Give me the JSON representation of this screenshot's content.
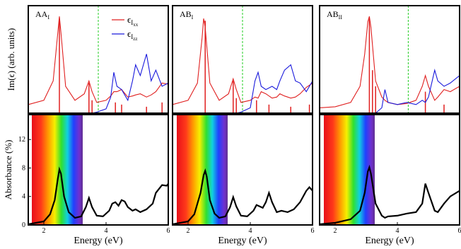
{
  "chart_data": [
    {
      "type": "line",
      "label": "AA",
      "label_sub": "I",
      "ylabel": "Im(ϵ) (arb. units)",
      "xlim": [
        1.5,
        6
      ],
      "ylim": [
        0,
        100
      ],
      "vline": 3.75,
      "x": [
        1.5,
        2.0,
        2.3,
        2.45,
        2.5,
        2.55,
        2.7,
        3.0,
        3.3,
        3.45,
        3.55,
        3.7,
        4.0,
        4.15,
        4.25,
        4.35,
        4.5,
        4.7,
        4.85,
        4.95,
        5.1,
        5.3,
        5.45,
        5.6,
        5.8,
        6.0
      ],
      "series": [
        {
          "name": "ϵ",
          "sub": "I",
          "subsub": "xx",
          "color": "#e02020",
          "values": [
            8,
            12,
            30,
            75,
            90,
            75,
            25,
            12,
            18,
            30,
            20,
            10,
            12,
            16,
            20,
            20,
            22,
            15,
            16,
            17,
            18,
            15,
            17,
            20,
            28,
            27
          ]
        },
        {
          "name": "ϵ",
          "sub": "I",
          "subsub": "zz",
          "color": "#1a1adc",
          "values": [
            0,
            0,
            0,
            0,
            0,
            0,
            0,
            0,
            0,
            0,
            0,
            1,
            4,
            15,
            38,
            25,
            22,
            12,
            30,
            45,
            35,
            55,
            30,
            40,
            25,
            28
          ]
        }
      ],
      "sticks": {
        "color": "#e02020",
        "x": [
          2.5,
          3.45,
          3.55,
          4.3,
          4.5,
          5.3,
          5.8
        ],
        "values": [
          88,
          28,
          12,
          10,
          8,
          6,
          10
        ]
      }
    },
    {
      "type": "line",
      "ylabel": "Absorbance (%)",
      "xlabel": "Energy (eV)",
      "xlim": [
        1.5,
        6
      ],
      "ylim": [
        0,
        15.5
      ],
      "xticks": [
        2,
        4,
        6
      ],
      "yticks": [
        0,
        4,
        8,
        12
      ],
      "x": [
        1.5,
        2.0,
        2.2,
        2.35,
        2.45,
        2.5,
        2.55,
        2.65,
        2.8,
        3.0,
        3.2,
        3.35,
        3.45,
        3.55,
        3.7,
        3.9,
        4.1,
        4.2,
        4.3,
        4.4,
        4.5,
        4.6,
        4.7,
        4.85,
        4.95,
        5.1,
        5.3,
        5.5,
        5.6,
        5.8,
        5.95,
        6.0
      ],
      "series": [
        {
          "color": "#000000",
          "values": [
            0.1,
            0.5,
            1.5,
            3.5,
            6.5,
            7.8,
            7.2,
            4,
            1.8,
            1.0,
            1.2,
            2.5,
            3.8,
            2.5,
            1.3,
            1.2,
            2.0,
            3.0,
            3.2,
            2.7,
            3.5,
            3.3,
            2.5,
            2.0,
            2.2,
            1.8,
            2.2,
            3.0,
            4.5,
            5.6,
            5.5,
            5.8
          ]
        }
      ]
    },
    {
      "type": "line",
      "label": "AB",
      "label_sub": "I",
      "xlim": [
        1.5,
        6
      ],
      "ylim": [
        0,
        100
      ],
      "vline": 3.75,
      "x": [
        1.5,
        2.0,
        2.3,
        2.45,
        2.5,
        2.55,
        2.7,
        3.0,
        3.3,
        3.45,
        3.55,
        3.7,
        4.0,
        4.15,
        4.25,
        4.35,
        4.5,
        4.7,
        4.85,
        4.95,
        5.1,
        5.3,
        5.45,
        5.6,
        5.8,
        6.0
      ],
      "series": [
        {
          "color": "#e02020",
          "values": [
            8,
            12,
            28,
            70,
            88,
            80,
            28,
            12,
            18,
            32,
            22,
            10,
            12,
            15,
            14,
            20,
            18,
            14,
            15,
            18,
            16,
            14,
            15,
            18,
            24,
            28
          ]
        },
        {
          "color": "#1a1adc",
          "values": [
            0,
            0,
            0,
            0,
            0,
            0,
            0,
            0,
            0,
            0,
            0,
            1,
            5,
            30,
            38,
            25,
            22,
            25,
            22,
            30,
            40,
            45,
            30,
            28,
            20,
            30
          ]
        }
      ],
      "sticks": {
        "color": "#e02020",
        "x": [
          2.55,
          3.45,
          3.55,
          4.2,
          4.6,
          5.3,
          5.9
        ],
        "values": [
          86,
          30,
          14,
          12,
          8,
          6,
          8
        ]
      }
    },
    {
      "type": "line",
      "xlabel": "Energy (eV)",
      "xlim": [
        1.5,
        6
      ],
      "ylim": [
        0,
        15.5
      ],
      "xticks": [
        2,
        4,
        6
      ],
      "x": [
        1.5,
        2.0,
        2.2,
        2.4,
        2.5,
        2.55,
        2.6,
        2.7,
        2.85,
        3.0,
        3.2,
        3.35,
        3.45,
        3.55,
        3.7,
        3.9,
        4.1,
        4.2,
        4.3,
        4.4,
        4.5,
        4.6,
        4.7,
        4.85,
        5.0,
        5.2,
        5.4,
        5.6,
        5.8,
        5.9,
        6.0
      ],
      "series": [
        {
          "color": "#000000",
          "values": [
            0.1,
            0.5,
            1.5,
            4.5,
            7.0,
            7.6,
            6.8,
            3.5,
            1.6,
            1.0,
            1.2,
            2.5,
            3.9,
            2.6,
            1.3,
            1.2,
            2.0,
            2.8,
            2.6,
            2.4,
            3.2,
            4.5,
            3.2,
            1.8,
            2.0,
            1.8,
            2.2,
            3.2,
            4.8,
            5.3,
            4.8
          ]
        }
      ]
    },
    {
      "type": "line",
      "label": "AB",
      "label_sub": "II",
      "xlim": [
        1.5,
        6
      ],
      "ylim": [
        0,
        100
      ],
      "vline": 4.35,
      "x": [
        1.5,
        2.0,
        2.5,
        2.8,
        2.95,
        3.05,
        3.1,
        3.15,
        3.3,
        3.5,
        3.6,
        3.7,
        4.0,
        4.3,
        4.6,
        4.8,
        4.9,
        5.0,
        5.2,
        5.3,
        5.5,
        5.7,
        6.0
      ],
      "series": [
        {
          "color": "#e02020",
          "values": [
            5,
            6,
            10,
            25,
            55,
            85,
            90,
            80,
            30,
            15,
            12,
            10,
            8,
            9,
            12,
            25,
            35,
            25,
            12,
            15,
            22,
            20,
            25
          ]
        },
        {
          "color": "#1a1adc",
          "values": [
            0,
            0,
            0,
            0,
            0,
            0,
            0,
            0,
            0,
            5,
            22,
            10,
            8,
            10,
            8,
            12,
            10,
            15,
            40,
            30,
            25,
            28,
            35
          ]
        }
      ],
      "sticks": {
        "color": "#e02020",
        "x": [
          3.1,
          3.2,
          3.3,
          4.9,
          5.5
        ],
        "values": [
          88,
          40,
          25,
          20,
          8
        ]
      }
    },
    {
      "type": "line",
      "xlabel": "Energy (eV)",
      "xlim": [
        1.5,
        6
      ],
      "ylim": [
        0,
        15.5
      ],
      "xticks": [
        2,
        4,
        6
      ],
      "x": [
        1.5,
        2.0,
        2.5,
        2.8,
        2.95,
        3.05,
        3.1,
        3.15,
        3.3,
        3.5,
        3.6,
        3.7,
        4.0,
        4.3,
        4.6,
        4.8,
        4.9,
        5.0,
        5.2,
        5.3,
        5.5,
        5.7,
        6.0
      ],
      "series": [
        {
          "color": "#000000",
          "values": [
            0.1,
            0.3,
            0.8,
            2.0,
            4.5,
            7.5,
            8.1,
            7.2,
            3.0,
            1.3,
            1.0,
            1.2,
            1.3,
            1.6,
            1.8,
            3.0,
            5.8,
            4.5,
            2.0,
            1.8,
            3.0,
            4.0,
            4.8
          ]
        }
      ]
    }
  ]
}
